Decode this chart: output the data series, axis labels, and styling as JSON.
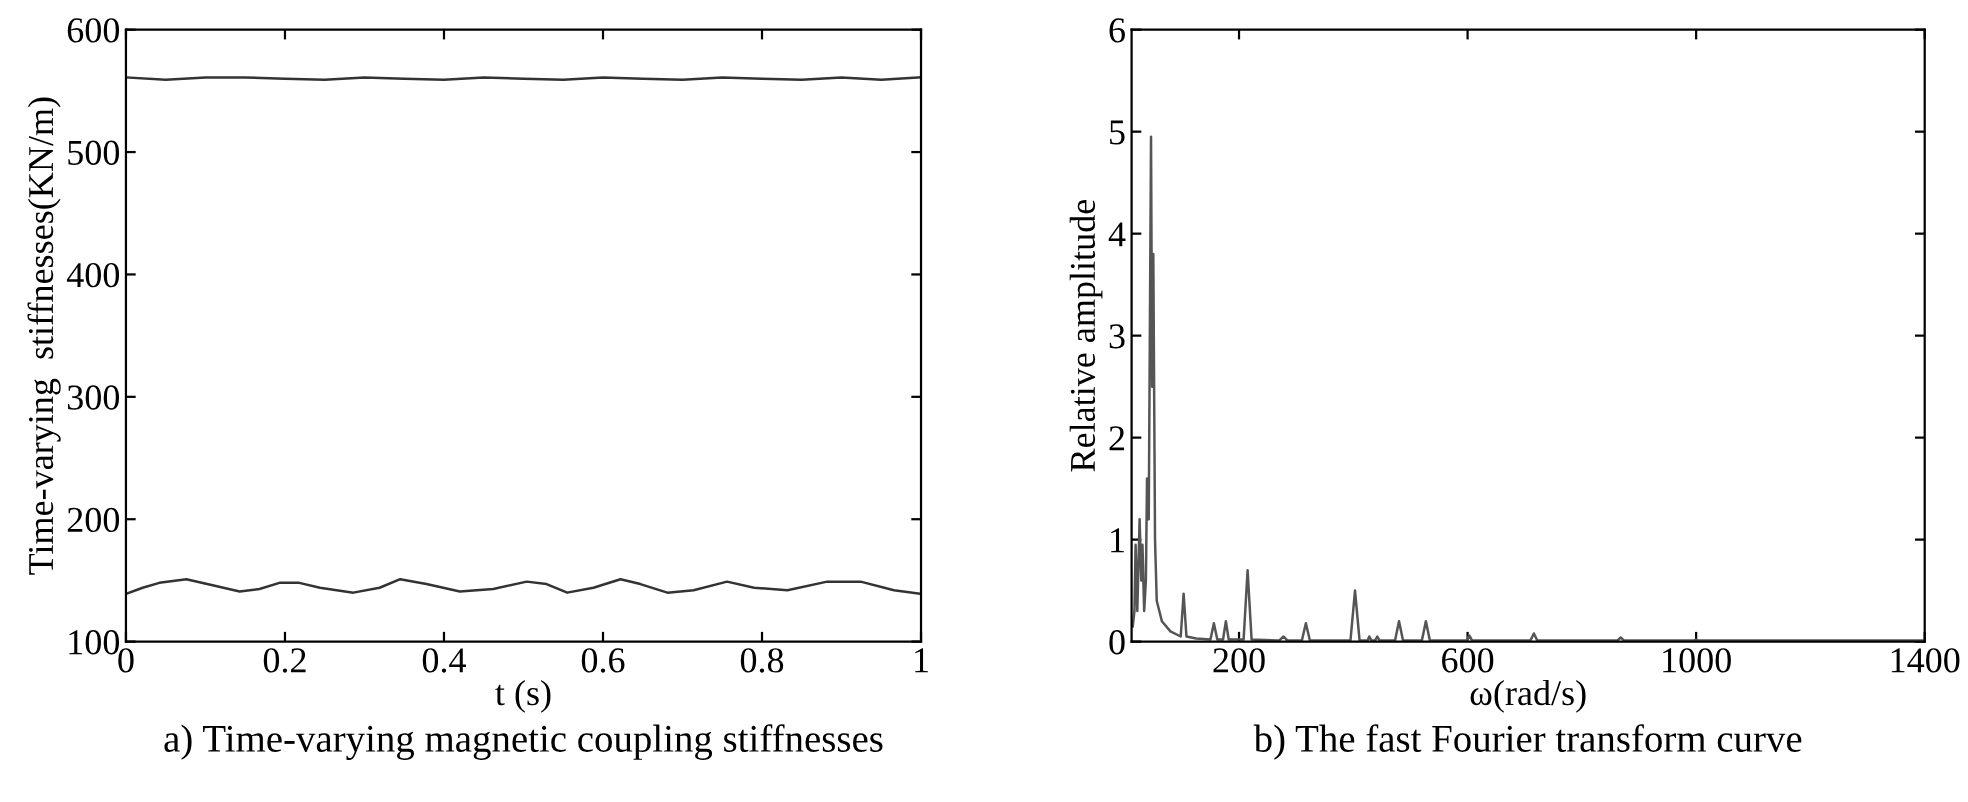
{
  "chart_data": [
    {
      "type": "line",
      "title": "a) Time-varying magnetic coupling stiffnesses",
      "xlabel": "t (s)",
      "ylabel": "Time-varying  stiffnesses(KN/m)",
      "xlim": [
        0,
        1
      ],
      "ylim": [
        100,
        600
      ],
      "xticks": [
        0,
        0.2,
        0.4,
        0.6,
        0.8,
        1
      ],
      "yticks": [
        100,
        200,
        300,
        400,
        500,
        600
      ],
      "legend": false,
      "grid": false,
      "series": [
        {
          "color": "#333333",
          "x": [
            0,
            0.05,
            0.1,
            0.15,
            0.2,
            0.25,
            0.3,
            0.35,
            0.4,
            0.45,
            0.5,
            0.55,
            0.6,
            0.65,
            0.7,
            0.75,
            0.8,
            0.85,
            0.9,
            0.95,
            1
          ],
          "values": [
            561,
            559,
            561,
            561,
            560,
            559,
            561,
            560,
            559,
            561,
            560,
            559,
            561,
            560,
            559,
            561,
            560,
            559,
            561,
            559,
            561
          ]
        },
        {
          "color": "#333333",
          "x": [
            0,
            0.021,
            0.042,
            0.076,
            0.109,
            0.143,
            0.168,
            0.193,
            0.218,
            0.244,
            0.286,
            0.319,
            0.345,
            0.378,
            0.42,
            0.462,
            0.504,
            0.529,
            0.555,
            0.588,
            0.622,
            0.647,
            0.681,
            0.714,
            0.756,
            0.79,
            0.832,
            0.882,
            0.924,
            0.966,
            1
          ],
          "values": [
            139,
            144,
            148,
            151,
            146,
            141,
            143,
            148,
            148,
            144,
            140,
            144,
            151,
            147,
            141,
            143,
            149,
            147,
            140,
            144,
            151,
            147,
            140,
            142,
            149,
            144,
            142,
            149,
            149,
            142,
            139
          ]
        }
      ]
    },
    {
      "type": "line",
      "title": "b) The fast Fourier transform curve",
      "xlabel": "ω(rad/s)",
      "ylabel": "Relative amplitude",
      "xlim": [
        12,
        1400
      ],
      "ylim": [
        0,
        6
      ],
      "xticks": [
        200,
        600,
        1000,
        1400
      ],
      "yticks": [
        0,
        1,
        2,
        3,
        4,
        5,
        6
      ],
      "legend": false,
      "grid": false,
      "series": [
        {
          "color": "#555555",
          "x": [
            14,
            17,
            19,
            22,
            26,
            29,
            31,
            34,
            37,
            39,
            42,
            46,
            48,
            50,
            53,
            56,
            65,
            80,
            98,
            103,
            108,
            125,
            150,
            156,
            162,
            172,
            177,
            182,
            208,
            215,
            222,
            270,
            278,
            285,
            310,
            317,
            324,
            395,
            403,
            411,
            425,
            428,
            432,
            438,
            442,
            446,
            473,
            480,
            487,
            520,
            527,
            534,
            598,
            603,
            608,
            710,
            716,
            722,
            862,
            868,
            874,
            995,
            1000,
            1005,
            1400
          ],
          "values": [
            0.15,
            0.3,
            0.95,
            0.3,
            1.2,
            0.6,
            0.95,
            0.3,
            0.6,
            1.6,
            1.2,
            4.95,
            2.5,
            3.8,
            1.0,
            0.4,
            0.2,
            0.1,
            0.05,
            0.47,
            0.05,
            0.03,
            0.02,
            0.18,
            0.02,
            0.02,
            0.2,
            0.02,
            0.02,
            0.7,
            0.02,
            0.01,
            0.05,
            0.01,
            0.01,
            0.18,
            0.01,
            0.01,
            0.5,
            0.01,
            0.01,
            0.05,
            0.01,
            0.01,
            0.05,
            0.01,
            0.01,
            0.2,
            0.01,
            0.01,
            0.2,
            0.01,
            0.01,
            0.06,
            0.01,
            0.01,
            0.08,
            0.01,
            0.01,
            0.04,
            0.01,
            0.01,
            0.02,
            0.01,
            0.01
          ]
        }
      ]
    }
  ]
}
